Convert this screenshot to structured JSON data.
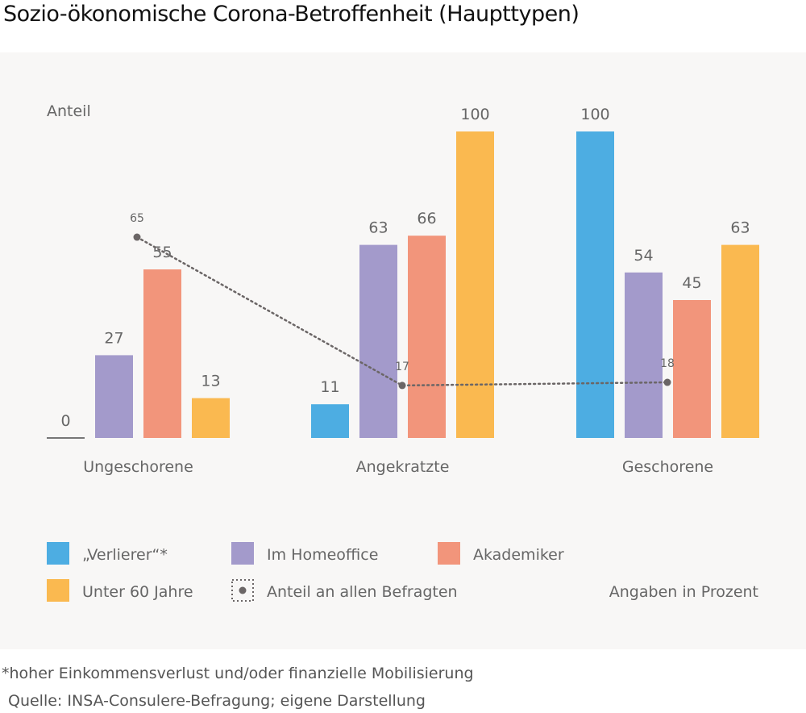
{
  "title": "Sozio-ökonomische Corona-Betroffenheit (Haupttypen)",
  "chart_data": {
    "type": "bar",
    "title": "Sozio-ökonomische Corona-Betroffenheit (Haupttypen)",
    "ylabel": "Anteil",
    "xlabel": "",
    "ylim": [
      0,
      100
    ],
    "grid": false,
    "unit_note": "Angaben in Prozent",
    "categories": [
      "Ungeschorene",
      "Angekratzte",
      "Geschorene"
    ],
    "series": [
      {
        "name": "„Verlierer“*",
        "color": "#4DADE2",
        "values": [
          0,
          11,
          100
        ]
      },
      {
        "name": "Im Homeoffice",
        "color": "#A39ACB",
        "values": [
          27,
          63,
          54
        ]
      },
      {
        "name": "Akademiker",
        "color": "#F2957B",
        "values": [
          55,
          66,
          45
        ]
      },
      {
        "name": "Unter 60 Jahre",
        "color": "#FAB950",
        "values": [
          13,
          100,
          63
        ]
      }
    ],
    "line_series": {
      "name": "Anteil an allen Befragten",
      "color": "#6b6666",
      "style": "dotted",
      "values": [
        65,
        17,
        18
      ]
    },
    "legend_position": "bottom"
  },
  "legend": {
    "items": [
      {
        "label": "„Verlierer“*",
        "color": "#4DADE2"
      },
      {
        "label": "Im Homeoffice",
        "color": "#A39ACB"
      },
      {
        "label": "Akademiker",
        "color": "#F2957B"
      },
      {
        "label": "Unter 60 Jahre",
        "color": "#FAB950"
      },
      {
        "label": "Anteil an allen Befragten",
        "color": "#6b6666"
      }
    ],
    "note": "Angaben in Prozent"
  },
  "footnote": "*hoher Einkommensverlust und/oder finanzielle Mobilisierung",
  "source": "Quelle: INSA-Consulere-Befragung; eigene Darstellung"
}
